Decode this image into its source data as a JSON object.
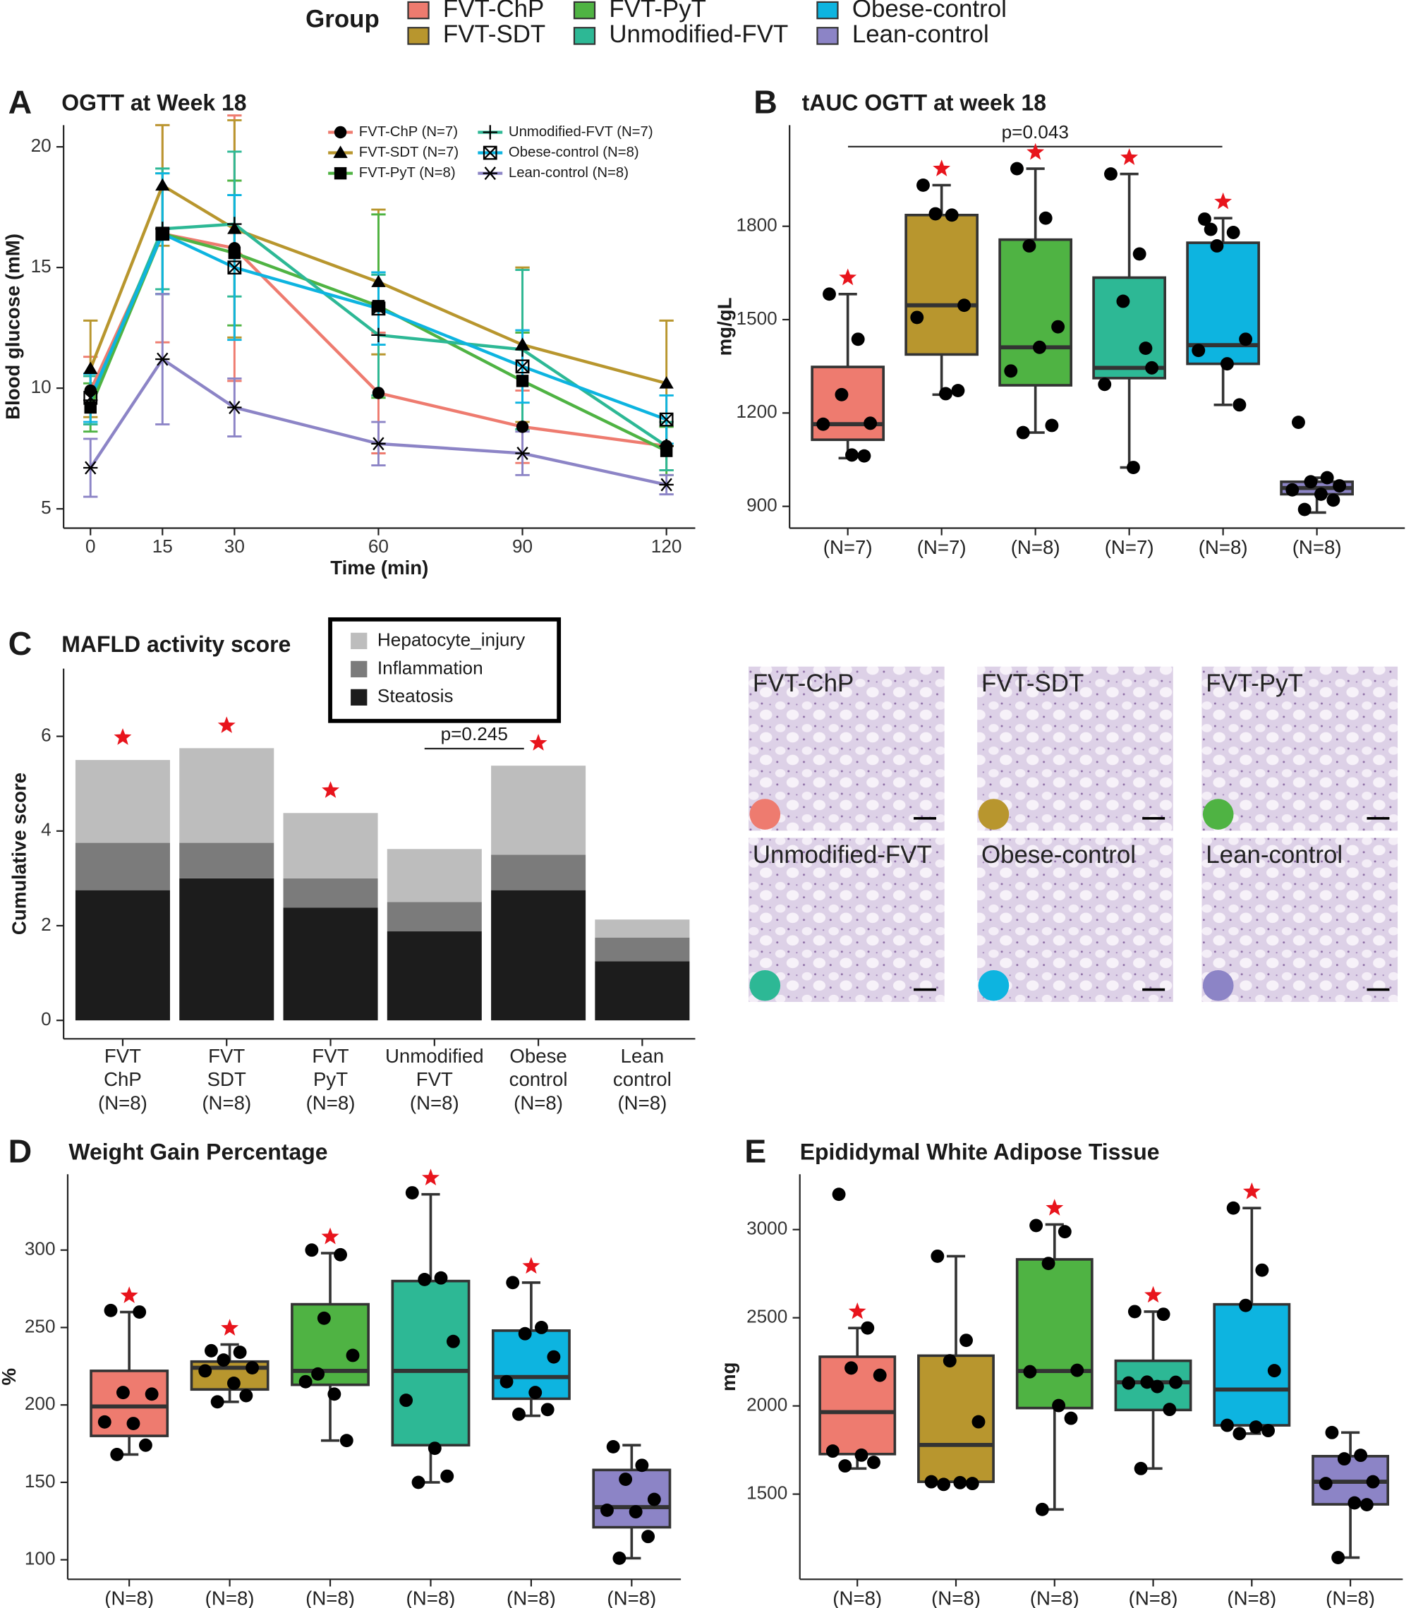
{
  "group_legend": {
    "title": "Group",
    "items": [
      {
        "name": "FVT-ChP",
        "color": "#ee7b6f"
      },
      {
        "name": "FVT-SDT",
        "color": "#b8962e"
      },
      {
        "name": "FVT-PyT",
        "color": "#4fb343"
      },
      {
        "name": "Unmodified-FVT",
        "color": "#2db895"
      },
      {
        "name": "Obese-control",
        "color": "#0db4e0"
      },
      {
        "name": "Lean-control",
        "color": "#8c84c6"
      }
    ]
  },
  "micrographs": [
    {
      "label": "FVT-ChP",
      "color": "#ee7b6f"
    },
    {
      "label": "FVT-SDT",
      "color": "#b8962e"
    },
    {
      "label": "FVT-PyT",
      "color": "#4fb343"
    },
    {
      "label": "Unmodified-FVT",
      "color": "#2db895"
    },
    {
      "label": "Obese-control",
      "color": "#0db4e0"
    },
    {
      "label": "Lean-control",
      "color": "#8c84c6"
    }
  ],
  "chart_data": [
    {
      "type": "line",
      "panel": "A",
      "title": "OGTT at Week 18",
      "x_label": "Time (min)",
      "y_label": "Blood glucose (mM)",
      "x": [
        0,
        15,
        30,
        60,
        90,
        120
      ],
      "xlim": [
        -5.6,
        126
      ],
      "xticks": [
        0,
        15,
        30,
        60,
        90,
        120
      ],
      "ylim": [
        4.2,
        20.9
      ],
      "yticks": [
        5,
        10,
        15,
        20
      ],
      "series": [
        {
          "name": "FVT-ChP (N=7)",
          "color": "#ee7b6f",
          "marker": "circle",
          "values": [
            9.9,
            16.4,
            15.8,
            9.8,
            8.4,
            7.6
          ],
          "errors": [
            1.4,
            4.5,
            5.5,
            2.5,
            1.5,
            1.0
          ]
        },
        {
          "name": "FVT-SDT (N=7)",
          "color": "#b8962e",
          "marker": "triangle",
          "values": [
            10.8,
            18.4,
            16.6,
            14.4,
            11.8,
            10.2
          ],
          "errors": [
            2.0,
            2.5,
            4.5,
            3.0,
            3.2,
            2.6
          ]
        },
        {
          "name": "FVT-PyT (N=8)",
          "color": "#4fb343",
          "marker": "square",
          "values": [
            9.2,
            16.4,
            15.6,
            13.4,
            10.3,
            7.4
          ],
          "errors": [
            1.0,
            2.5,
            3.0,
            3.8,
            2.0,
            1.0
          ]
        },
        {
          "name": "Unmodified-FVT (N=7)",
          "color": "#2db895",
          "marker": "plus",
          "values": [
            9.5,
            16.6,
            16.8,
            12.2,
            11.6,
            7.6
          ],
          "errors": [
            1.0,
            2.5,
            3.0,
            2.5,
            3.3,
            1.0
          ]
        },
        {
          "name": "Obese-control (N=8)",
          "color": "#0db4e0",
          "marker": "boxx",
          "values": [
            9.6,
            16.4,
            15.0,
            13.3,
            10.9,
            8.7
          ],
          "errors": [
            1.0,
            2.5,
            3.0,
            1.5,
            1.5,
            1.0
          ]
        },
        {
          "name": "Lean-control (N=8)",
          "color": "#8c84c6",
          "marker": "asterisk",
          "values": [
            6.7,
            11.2,
            9.2,
            7.7,
            7.3,
            6.0
          ],
          "errors": [
            1.2,
            2.7,
            1.2,
            0.9,
            0.9,
            0.4
          ]
        }
      ]
    },
    {
      "type": "box",
      "panel": "B",
      "title": "tAUC OGTT at week 18",
      "y_label": "mg/gL",
      "p_value": "p=0.043",
      "categories": [
        "(N=7)",
        "(N=7)",
        "(N=8)",
        "(N=7)",
        "(N=8)",
        "(N=8)"
      ],
      "ylim": [
        830,
        2125
      ],
      "yticks": [
        900,
        1200,
        1500,
        1800
      ],
      "significant": [
        true,
        true,
        true,
        true,
        true,
        false
      ],
      "boxes": [
        {
          "color": "#ee7b6f",
          "low": 1055,
          "q1": 1114,
          "median": 1164,
          "q3": 1348,
          "high": 1582,
          "points": [
            1582,
            1437,
            1259,
            1167,
            1164,
            1065,
            1062
          ]
        },
        {
          "color": "#b8962e",
          "low": 1259,
          "q1": 1388,
          "median": 1546,
          "q3": 1836,
          "high": 1932,
          "points": [
            1932,
            1836,
            1840,
            1546,
            1507,
            1262,
            1272
          ]
        },
        {
          "color": "#4fb343",
          "low": 1137,
          "q1": 1289,
          "median": 1411,
          "q3": 1757,
          "high": 1985,
          "points": [
            1985,
            1826,
            1737,
            1477,
            1335,
            1411,
            1160,
            1137
          ]
        },
        {
          "color": "#2db895",
          "low": 1025,
          "q1": 1312,
          "median": 1345,
          "q3": 1635,
          "high": 1968,
          "points": [
            1968,
            1711,
            1559,
            1345,
            1292,
            1025,
            1408
          ]
        },
        {
          "color": "#0db4e0",
          "low": 1226,
          "q1": 1358,
          "median": 1418,
          "q3": 1747,
          "high": 1826,
          "points": [
            1823,
            1780,
            1737,
            1437,
            1401,
            1358,
            1226,
            1790
          ]
        },
        {
          "color": "#8c84c6",
          "low": 880,
          "q1": 939,
          "median": 959,
          "q3": 979,
          "high": 992,
          "points": [
            1170,
            992,
            979,
            966,
            953,
            939,
            920,
            890
          ]
        }
      ]
    },
    {
      "type": "stacked_bar",
      "panel": "C",
      "title": "MAFLD activity score",
      "y_label": "Cumulative score",
      "p_value": "p=0.245",
      "categories": [
        [
          "FVT",
          "ChP",
          "(N=8)"
        ],
        [
          "FVT",
          "SDT",
          "(N=8)"
        ],
        [
          "FVT",
          "PyT",
          "(N=8)"
        ],
        [
          "Unmodified",
          "FVT",
          "(N=8)"
        ],
        [
          "Obese",
          "control",
          "(N=8)"
        ],
        [
          "Lean",
          "control",
          "(N=8)"
        ]
      ],
      "ylim": [
        -0.39,
        7.43
      ],
      "yticks": [
        0,
        2,
        4,
        6
      ],
      "significant": [
        true,
        true,
        true,
        false,
        true,
        false
      ],
      "series": [
        {
          "name": "Steatosis",
          "color": "#1c1c1c",
          "values": [
            2.75,
            3.0,
            2.38,
            1.88,
            2.75,
            1.25
          ]
        },
        {
          "name": "Inflammation",
          "color": "#7b7b7b",
          "values": [
            1.0,
            0.75,
            0.62,
            0.62,
            0.75,
            0.5
          ]
        },
        {
          "name": "Hepatocyte_injury",
          "color": "#bdbdbd",
          "values": [
            1.75,
            2.0,
            1.38,
            1.12,
            1.88,
            0.38
          ]
        }
      ]
    },
    {
      "type": "box",
      "panel": "D",
      "title": "Weight Gain Percentage",
      "y_label": "%",
      "categories": [
        "(N=8)",
        "(N=8)",
        "(N=8)",
        "(N=8)",
        "(N=8)",
        "(N=8)"
      ],
      "ylim": [
        87.4,
        349
      ],
      "yticks": [
        100,
        150,
        200,
        250,
        300
      ],
      "significant": [
        true,
        true,
        true,
        true,
        true,
        false
      ],
      "boxes": [
        {
          "color": "#ee7b6f",
          "low": 168,
          "q1": 180,
          "median": 199,
          "q3": 222,
          "high": 260,
          "points": [
            261,
            260,
            208,
            207,
            189,
            188,
            174,
            168
          ]
        },
        {
          "color": "#b8962e",
          "low": 202,
          "q1": 210,
          "median": 224,
          "q3": 228,
          "high": 239,
          "points": [
            235,
            234,
            229,
            224,
            222,
            214,
            206,
            202
          ]
        },
        {
          "color": "#4fb343",
          "low": 177,
          "q1": 213,
          "median": 222,
          "q3": 265,
          "high": 298,
          "points": [
            300,
            297,
            256,
            232,
            215,
            207,
            177,
            220
          ]
        },
        {
          "color": "#2db895",
          "low": 150,
          "q1": 174,
          "median": 222,
          "q3": 280,
          "high": 336,
          "points": [
            337,
            282,
            281,
            241,
            203,
            172,
            154,
            150
          ]
        },
        {
          "color": "#0db4e0",
          "low": 193,
          "q1": 204,
          "median": 218,
          "q3": 248,
          "high": 279,
          "points": [
            279,
            250,
            246,
            231,
            215,
            208,
            197,
            194
          ]
        },
        {
          "color": "#8c84c6",
          "low": 101,
          "q1": 121,
          "median": 134,
          "q3": 158,
          "high": 174,
          "points": [
            173,
            161,
            152,
            139,
            132,
            131,
            115,
            101
          ]
        }
      ]
    },
    {
      "type": "box",
      "panel": "E",
      "title": "Epididymal White Adipose Tissue",
      "y_label": "mg",
      "categories": [
        "(N=8)",
        "(N=8)",
        "(N=8)",
        "(N=8)",
        "(N=8)",
        "(N=8)"
      ],
      "ylim": [
        1017,
        3314
      ],
      "yticks": [
        1500,
        2000,
        2500,
        3000
      ],
      "significant": [
        true,
        false,
        true,
        true,
        true,
        false
      ],
      "boxes": [
        {
          "color": "#ee7b6f",
          "low": 1645,
          "q1": 1727,
          "median": 1965,
          "q3": 2279,
          "high": 2442,
          "points": [
            3200,
            2442,
            2215,
            2174,
            1744,
            1721,
            1680,
            1660
          ]
        },
        {
          "color": "#b8962e",
          "low": 1570,
          "q1": 1570,
          "median": 1779,
          "q3": 2285,
          "high": 2849,
          "points": [
            2849,
            2372,
            2256,
            1910,
            1570,
            1565,
            1560,
            1555
          ]
        },
        {
          "color": "#4fb343",
          "low": 1413,
          "q1": 1988,
          "median": 2198,
          "q3": 2831,
          "high": 3029,
          "points": [
            3023,
            2988,
            2808,
            2202,
            2194,
            2002,
            1930,
            1413
          ]
        },
        {
          "color": "#2db895",
          "low": 1645,
          "q1": 1977,
          "median": 2134,
          "q3": 2256,
          "high": 2535,
          "points": [
            2535,
            2520,
            2135,
            2134,
            2130,
            2110,
            1980,
            1645
          ]
        },
        {
          "color": "#0db4e0",
          "low": 1843,
          "q1": 1890,
          "median": 2093,
          "q3": 2576,
          "high": 3122,
          "points": [
            3122,
            2770,
            2570,
            2200,
            1890,
            1880,
            1860,
            1843
          ]
        },
        {
          "color": "#8c84c6",
          "low": 1140,
          "q1": 1442,
          "median": 1570,
          "q3": 1715,
          "high": 1849,
          "points": [
            1849,
            1720,
            1700,
            1570,
            1560,
            1450,
            1440,
            1140
          ]
        }
      ]
    }
  ]
}
